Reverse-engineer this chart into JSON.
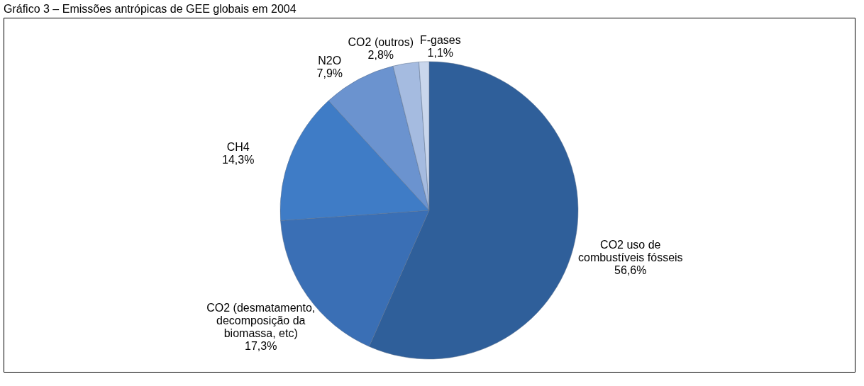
{
  "chart_data": {
    "type": "pie",
    "title": "Gráfico 3 – Emissões antrópicas de GEE globais em 2004",
    "categories": [
      "CO2 uso de combustíveis fósseis",
      "CO2 (desmatamento, decomposição da biomassa, etc)",
      "CH4",
      "N2O",
      "CO2 (outros)",
      "F-gases"
    ],
    "values": [
      56.6,
      17.3,
      14.3,
      7.9,
      2.8,
      1.1
    ],
    "value_labels": [
      "56,6%",
      "17,3%",
      "14,3%",
      "7,9%",
      "2,8%",
      "1,1%"
    ],
    "colors": [
      "#2f5f9a",
      "#3a6fb5",
      "#3f7cc6",
      "#6b93cf",
      "#a5bbe0",
      "#c9d6ec"
    ],
    "legend": false
  }
}
